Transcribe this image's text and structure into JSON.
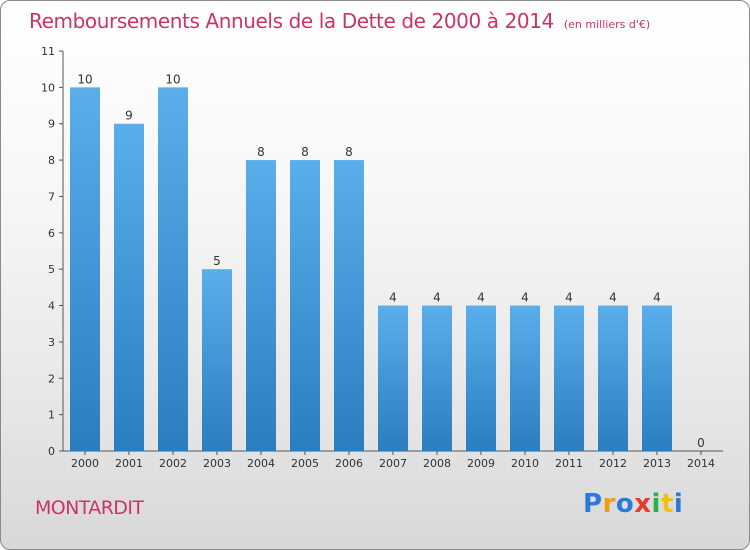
{
  "title": "Remboursements Annuels de la Dette de 2000 à 2014",
  "subtitle": "(en milliers d'€)",
  "commune": "MONTARDIT",
  "logo": {
    "letters": [
      "P",
      "r",
      "o",
      "x",
      "i",
      "t",
      "i"
    ],
    "colors": [
      "#2b7bd6",
      "#f39c12",
      "#2b7bd6",
      "#e63a2e",
      "#2bb34a",
      "#f3c012",
      "#2b7bd6"
    ]
  },
  "colors": {
    "bar_top": "#5aaeea",
    "bar_bottom": "#2a7ec0",
    "accent": "#cc3366"
  },
  "chart_data": {
    "type": "bar",
    "categories": [
      "2000",
      "2001",
      "2002",
      "2003",
      "2004",
      "2005",
      "2006",
      "2007",
      "2008",
      "2009",
      "2010",
      "2011",
      "2012",
      "2013",
      "2014"
    ],
    "values": [
      10,
      9,
      10,
      5,
      8,
      8,
      8,
      4,
      4,
      4,
      4,
      4,
      4,
      4,
      0
    ],
    "data_labels": [
      "10",
      "9",
      "10",
      "5",
      "8",
      "8",
      "8",
      "4",
      "4",
      "4",
      "4",
      "4",
      "4",
      "4",
      "0"
    ],
    "yticks": [
      "0",
      "1",
      "2",
      "3",
      "4",
      "5",
      "6",
      "7",
      "8",
      "9",
      "10",
      "11"
    ],
    "ylim": [
      0,
      11
    ],
    "grid": false,
    "legend": "none"
  }
}
